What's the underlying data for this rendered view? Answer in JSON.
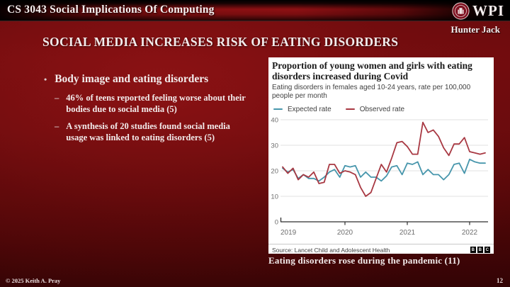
{
  "header": {
    "course_title": "CS 3043 Social Implications Of Computing",
    "logo_text": "WPI",
    "author": "Hunter Jack"
  },
  "slide": {
    "title": "SOCIAL MEDIA INCREASES RISK OF EATING DISORDERS",
    "bullets": [
      {
        "label": "Body image and eating disorders",
        "sub": [
          "46% of teens reported feeling worse about their bodies due to social media (5)",
          "A synthesis of 20 studies found social media usage was linked to eating disorders (5)"
        ]
      }
    ],
    "chart_caption": "Eating disorders rose during the pandemic (11)"
  },
  "footer": {
    "copyright": "© 2025 Keith A. Pray",
    "page_number": "12"
  },
  "chart_data": {
    "type": "line",
    "title": "Proportion of young women and girls with eating disorders increased during Covid",
    "subtitle": "Eating disorders in females aged 10-24 years, rate per 100,000 people per month",
    "source": "Source: Lancet Child and Adolescent Health",
    "bbc_logo_letters": [
      "B",
      "B",
      "C"
    ],
    "x_start": "2019-01",
    "x_interval": "month",
    "x_tick_labels": [
      "2019",
      "2020",
      "2021",
      "2022"
    ],
    "x_tick_indices": [
      0,
      12,
      24,
      36
    ],
    "y_ticks": [
      0,
      10,
      20,
      30,
      40
    ],
    "ylim": [
      0,
      40
    ],
    "grid": true,
    "legend_position": "top",
    "series": [
      {
        "name": "Expected rate",
        "color": "#4796AC",
        "values": [
          21,
          19.5,
          20.5,
          17,
          18.5,
          17,
          17,
          16,
          17.5,
          19.5,
          20.5,
          17.5,
          22,
          21.5,
          22,
          17.5,
          19.5,
          17.5,
          17.5,
          16,
          18,
          21.5,
          22,
          18.5,
          23,
          22.5,
          23.5,
          18.5,
          20.5,
          18.5,
          18.5,
          16.5,
          18.5,
          22.5,
          23,
          19,
          24.5,
          23.5,
          23,
          23
        ]
      },
      {
        "name": "Observed rate",
        "color": "#A83842",
        "values": [
          21.5,
          19,
          21,
          16.5,
          18.5,
          17.5,
          19.5,
          15,
          15.5,
          22.5,
          22.5,
          19,
          20,
          19.5,
          18.5,
          13.5,
          10,
          11.5,
          17,
          22.5,
          19.5,
          25,
          31,
          31.5,
          29.5,
          26.5,
          26.5,
          39,
          35,
          36,
          33.5,
          29,
          26,
          30.5,
          30.5,
          33,
          27.5,
          27,
          26.5,
          27
        ]
      }
    ]
  }
}
